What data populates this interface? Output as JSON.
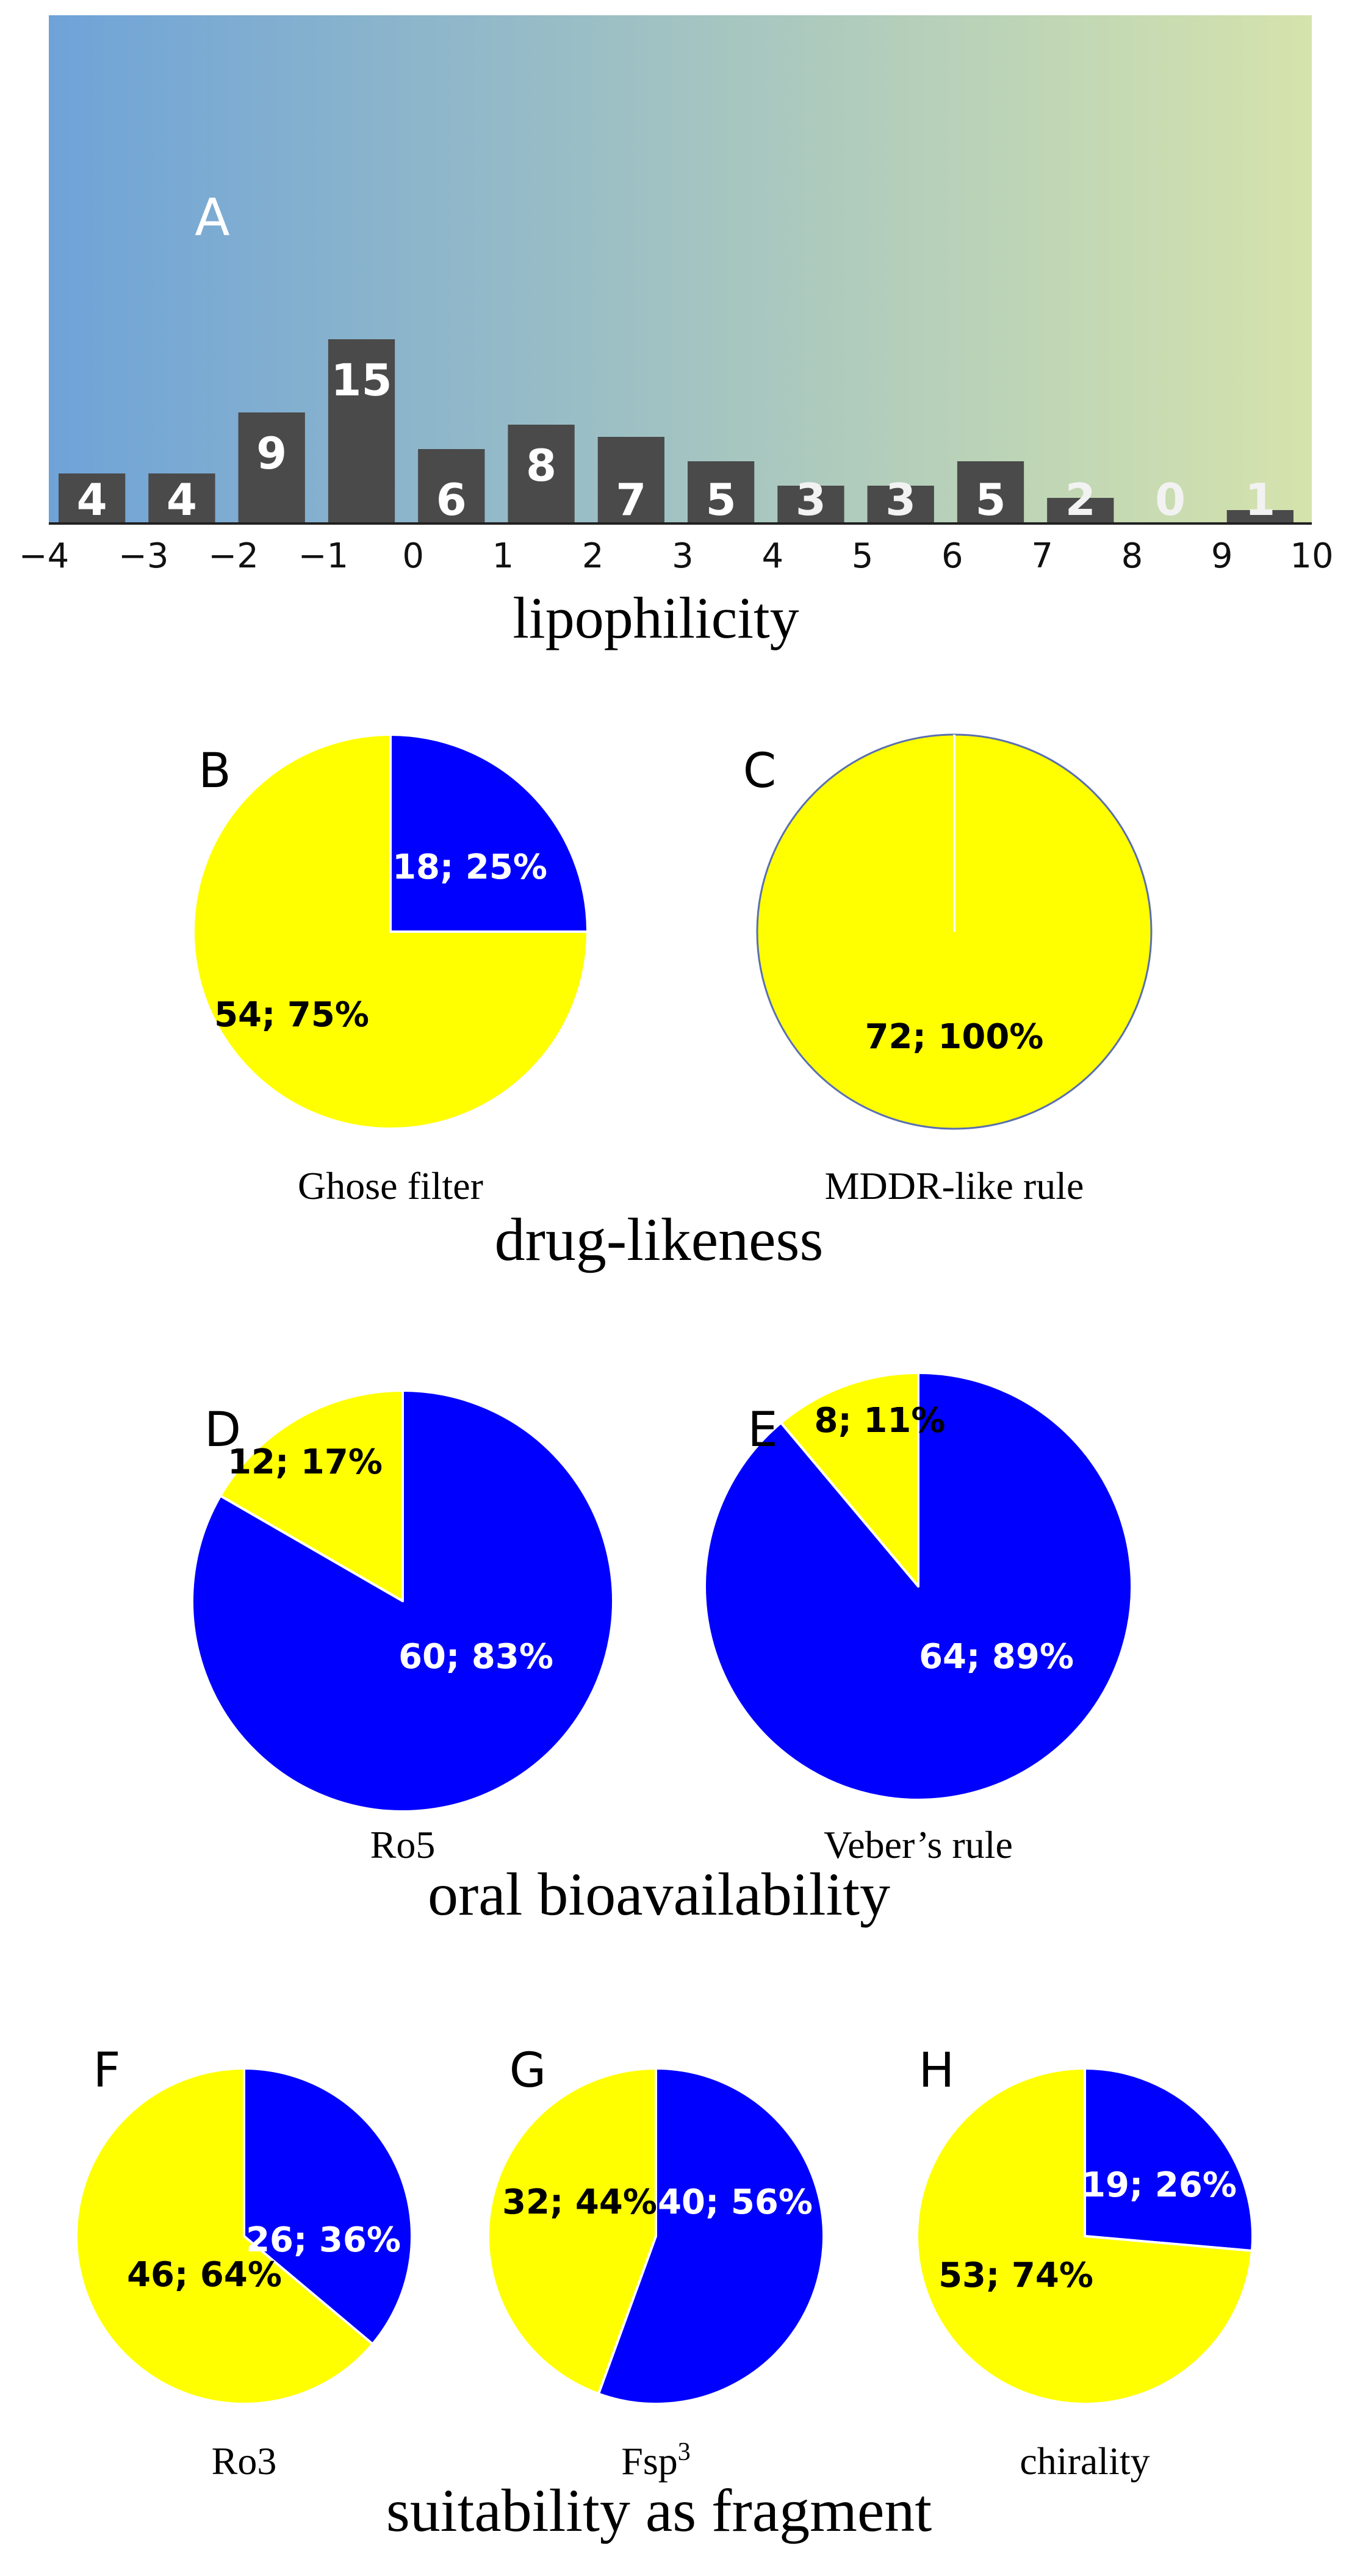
{
  "colors": {
    "gradient_start": "#6fa3d8",
    "gradient_end": "#d5e3ac",
    "bar_fill": "#4a4a4a",
    "pass_color": "#0000ff",
    "fail_color": "#ffff00",
    "label_on_blue": "#ffffff",
    "label_on_yellow": "#000000"
  },
  "chart_data": [
    {
      "type": "bar",
      "panel": "A",
      "xlabel": "lipophilicity",
      "x_tick_labels": [
        "−4",
        "−3",
        "−2",
        "−1",
        "0",
        "1",
        "2",
        "3",
        "4",
        "5",
        "6",
        "7",
        "8",
        "9",
        "10"
      ],
      "bin_edges": [
        -4,
        -3,
        -2,
        -1,
        0,
        1,
        2,
        3,
        4,
        5,
        6,
        7,
        8,
        9,
        10
      ],
      "values": [
        4,
        4,
        9,
        15,
        6,
        8,
        7,
        5,
        3,
        3,
        5,
        2,
        0,
        1
      ],
      "value_labels": [
        "4",
        "4",
        "9",
        "15",
        "6",
        "8",
        "7",
        "5",
        "3",
        "3",
        "5",
        "2",
        "0",
        "1"
      ],
      "xlim": [
        -4,
        10
      ],
      "ylim": [
        0,
        15
      ]
    },
    {
      "type": "pie",
      "panel": "B",
      "group": "drug-likeness",
      "caption": "Ghose filter",
      "slices": [
        {
          "value": 18,
          "label": "18; 25%",
          "color": "#0000ff"
        },
        {
          "value": 54,
          "label": "54; 75%",
          "color": "#ffff00"
        }
      ]
    },
    {
      "type": "pie",
      "panel": "C",
      "group": "drug-likeness",
      "caption": "MDDR-like rule",
      "slices": [
        {
          "value": 0,
          "label": "",
          "color": "#0000ff"
        },
        {
          "value": 72,
          "label": "72; 100%",
          "color": "#ffff00"
        }
      ]
    },
    {
      "type": "pie",
      "panel": "D",
      "group": "oral bioavailability",
      "caption": "Ro5",
      "slices": [
        {
          "value": 60,
          "label": "60; 83%",
          "color": "#0000ff"
        },
        {
          "value": 12,
          "label": "12; 17%",
          "color": "#ffff00"
        }
      ]
    },
    {
      "type": "pie",
      "panel": "E",
      "group": "oral bioavailability",
      "caption": "Veber’s rule",
      "slices": [
        {
          "value": 64,
          "label": "64; 89%",
          "color": "#0000ff"
        },
        {
          "value": 8,
          "label": "8; 11%",
          "color": "#ffff00"
        }
      ]
    },
    {
      "type": "pie",
      "panel": "F",
      "group": "suitability as fragment",
      "caption": "Ro3",
      "slices": [
        {
          "value": 26,
          "label": "26; 36%",
          "color": "#0000ff"
        },
        {
          "value": 46,
          "label": "46; 64%",
          "color": "#ffff00"
        }
      ]
    },
    {
      "type": "pie",
      "panel": "G",
      "group": "suitability as fragment",
      "caption_main": "Fsp",
      "caption_sup": "3",
      "slices": [
        {
          "value": 40,
          "label": "40; 56%",
          "color": "#0000ff"
        },
        {
          "value": 32,
          "label": "32; 44%",
          "color": "#ffff00"
        }
      ]
    },
    {
      "type": "pie",
      "panel": "H",
      "group": "suitability as fragment",
      "caption": "chirality",
      "slices": [
        {
          "value": 19,
          "label": "19; 26%",
          "color": "#0000ff"
        },
        {
          "value": 53,
          "label": "53; 74%",
          "color": "#ffff00"
        }
      ]
    }
  ],
  "group_titles": {
    "drug_likeness": "drug-likeness",
    "oral_bioavailability": "oral bioavailability",
    "fragment": "suitability as fragment"
  }
}
